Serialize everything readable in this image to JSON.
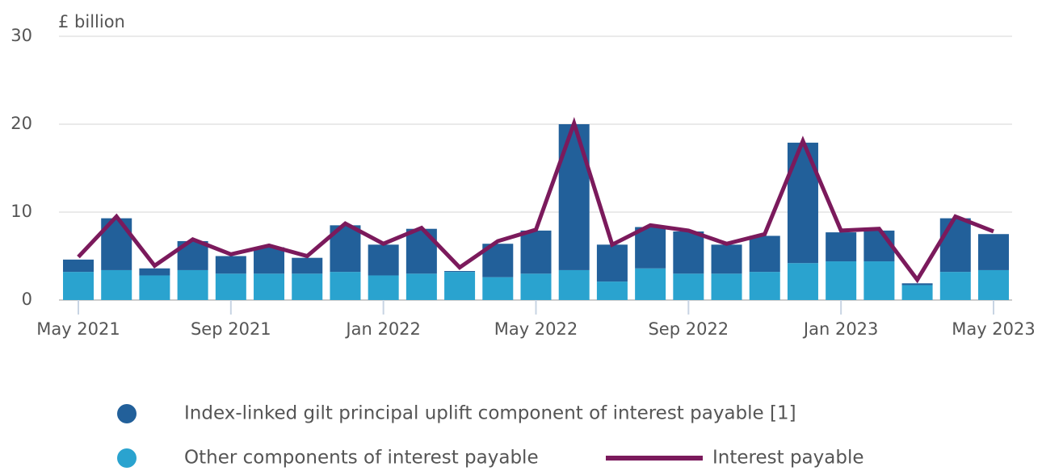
{
  "chart_data": {
    "type": "bar",
    "stacked": true,
    "y_label": "£ billion",
    "categories": [
      "May 2021",
      null,
      null,
      null,
      "Sep 2021",
      null,
      null,
      null,
      "Jan 2022",
      null,
      null,
      null,
      "May 2022",
      null,
      null,
      null,
      "Sep 2022",
      null,
      null,
      null,
      "Jan 2023",
      null,
      null,
      null,
      "May 2023"
    ],
    "series": [
      {
        "name": "Index-linked gilt principal uplift component of interest payable [1]",
        "type": "bar",
        "color": "#22609a",
        "values": [
          1.4,
          5.9,
          0.8,
          3.3,
          2.0,
          3.0,
          1.8,
          5.3,
          3.5,
          5.1,
          0.1,
          3.8,
          4.9,
          16.6,
          4.2,
          4.7,
          4.8,
          3.3,
          4.1,
          13.7,
          3.3,
          3.5,
          0.2,
          6.1,
          4.1
        ]
      },
      {
        "name": "Other components of interest payable",
        "type": "bar",
        "color": "#2aa3cf",
        "values": [
          3.2,
          3.4,
          2.8,
          3.4,
          3.0,
          3.0,
          3.0,
          3.2,
          2.8,
          3.0,
          3.2,
          2.6,
          3.0,
          3.4,
          2.1,
          3.6,
          3.0,
          3.0,
          3.2,
          4.2,
          4.4,
          4.4,
          1.7,
          3.2,
          3.4
        ]
      },
      {
        "name": "Interest payable",
        "type": "line",
        "color": "#7b1a5c",
        "values": [
          4.9,
          9.5,
          3.9,
          6.9,
          5.2,
          6.2,
          5.0,
          8.7,
          6.4,
          8.2,
          3.7,
          6.7,
          8.0,
          20.1,
          6.3,
          8.5,
          7.9,
          6.4,
          7.5,
          18.1,
          7.9,
          8.1,
          2.3,
          9.5,
          7.8
        ]
      }
    ],
    "ylim": [
      0,
      30
    ],
    "yticks": [
      0,
      10,
      20,
      30
    ],
    "grid": true
  }
}
